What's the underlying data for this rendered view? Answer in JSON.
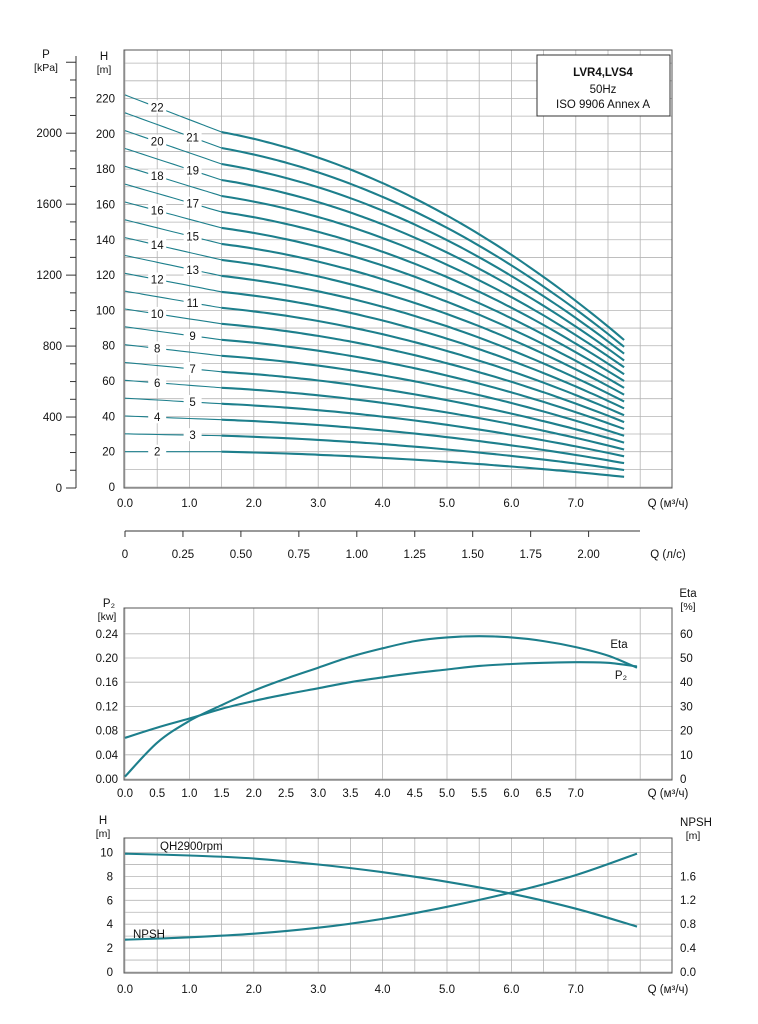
{
  "colors": {
    "curve": "#1d7f8c",
    "grid": "#b5b5b5"
  },
  "chart_data": [
    {
      "type": "line",
      "title": "LVR4,LVS4",
      "subtitle": "50Hz",
      "note": "ISO 9906 Annex A",
      "ylabel_left": "P",
      "ylabel_left_unit": "[kPa]",
      "ylabel": "H",
      "ylabel_unit": "[m]",
      "xlabel": "Q (м³/ч)",
      "xlabel2": "Q (л/с)",
      "xlim": [
        0,
        7.0
      ],
      "x_max": 7.95,
      "ylim": [
        0,
        230
      ],
      "x_ticks": [
        "0.0",
        "1.0",
        "2.0",
        "3.0",
        "4.0",
        "5.0",
        "6.0",
        "7.0"
      ],
      "x2_ticks": [
        "0",
        "0.25",
        "0.50",
        "0.75",
        "1.00",
        "1.25",
        "1.50",
        "1.75",
        "2.00"
      ],
      "y_ticks": [
        "0",
        "20",
        "40",
        "60",
        "80",
        "100",
        "120",
        "140",
        "160",
        "180",
        "200",
        "220"
      ],
      "p_ticks": [
        "0",
        "400",
        "800",
        "1200",
        "1600",
        "2000"
      ],
      "grid": true,
      "stage_labels": [
        "2",
        "3",
        "4",
        "5",
        "6",
        "7",
        "8",
        "9",
        "10",
        "11",
        "12",
        "13",
        "14",
        "15",
        "16",
        "17",
        "18",
        "19",
        "20",
        "21",
        "22"
      ],
      "series": [
        {
          "name": "2",
          "x": [
            0,
            1.5,
            8.0
          ],
          "y": [
            20,
            20,
            5
          ]
        },
        {
          "name": "22",
          "x": [
            0,
            1.5,
            8.0
          ],
          "y": [
            222,
            201,
            77
          ]
        }
      ]
    },
    {
      "type": "line",
      "ylabel": "P₂",
      "ylabel_unit": "[kw]",
      "ylabel_right": "Eta",
      "ylabel_right_unit": "[%]",
      "xlabel": "Q (м³/ч)",
      "x_ticks": [
        "0.0",
        "0.5",
        "1.0",
        "1.5",
        "2.0",
        "2.5",
        "3.0",
        "3.5",
        "4.0",
        "4.5",
        "5.0",
        "5.5",
        "6.0",
        "6.5",
        "7.0"
      ],
      "y_ticks": [
        "0.00",
        "0.04",
        "0.08",
        "0.12",
        "0.16",
        "0.20",
        "0.24"
      ],
      "y_right_ticks": [
        "0",
        "10",
        "20",
        "30",
        "40",
        "50",
        "60"
      ],
      "ylim": [
        0,
        0.26
      ],
      "y_right_lim": [
        0,
        65
      ],
      "grid": true,
      "series": [
        {
          "name": "Eta",
          "x": [
            0,
            0.5,
            1.0,
            1.5,
            2.0,
            2.5,
            3.0,
            3.5,
            4.0,
            4.5,
            5.0,
            5.5,
            6.0,
            6.5,
            7.0,
            7.5,
            8.0
          ],
          "y": [
            1,
            15,
            24,
            30.5,
            36.5,
            41.5,
            46,
            50.5,
            54,
            57,
            58.5,
            59,
            58.5,
            57,
            54.5,
            51,
            46
          ]
        },
        {
          "name": "P₂",
          "x": [
            0,
            0.5,
            1.0,
            1.5,
            2.0,
            2.5,
            3.0,
            3.5,
            4.0,
            4.5,
            5.0,
            5.5,
            6.0,
            6.5,
            7.0,
            7.5,
            8.0
          ],
          "y": [
            0.068,
            0.085,
            0.1,
            0.116,
            0.129,
            0.14,
            0.15,
            0.16,
            0.168,
            0.175,
            0.181,
            0.187,
            0.19,
            0.192,
            0.193,
            0.192,
            0.186
          ]
        }
      ]
    },
    {
      "type": "line",
      "ylabel": "H",
      "ylabel_unit": "[m]",
      "ylabel_right": "NPSH",
      "ylabel_right_unit": "[m]",
      "xlabel": "Q (м³/ч)",
      "x_ticks": [
        "0.0",
        "1.0",
        "2.0",
        "3.0",
        "4.0",
        "5.0",
        "6.0",
        "7.0"
      ],
      "y_ticks": [
        "0",
        "2",
        "4",
        "6",
        "8",
        "10"
      ],
      "y_right_ticks": [
        "0.0",
        "0.4",
        "0.8",
        "1.2",
        "1.6"
      ],
      "ylim": [
        0,
        10.5
      ],
      "y_right_lim": [
        0,
        2.1
      ],
      "grid": true,
      "series": [
        {
          "name": "QH2900rpm",
          "x": [
            0,
            1.0,
            2.0,
            3.0,
            4.0,
            5.0,
            6.0,
            7.0,
            8.0
          ],
          "y": [
            9.9,
            9.75,
            9.5,
            9.0,
            8.35,
            7.55,
            6.55,
            5.3,
            3.8
          ]
        },
        {
          "name": "NPSH",
          "x": [
            0,
            1.0,
            2.0,
            3.0,
            4.0,
            5.0,
            6.0,
            7.0,
            8.0
          ],
          "y": [
            0.54,
            0.58,
            0.64,
            0.74,
            0.89,
            1.09,
            1.33,
            1.62,
            1.98
          ]
        }
      ]
    }
  ]
}
